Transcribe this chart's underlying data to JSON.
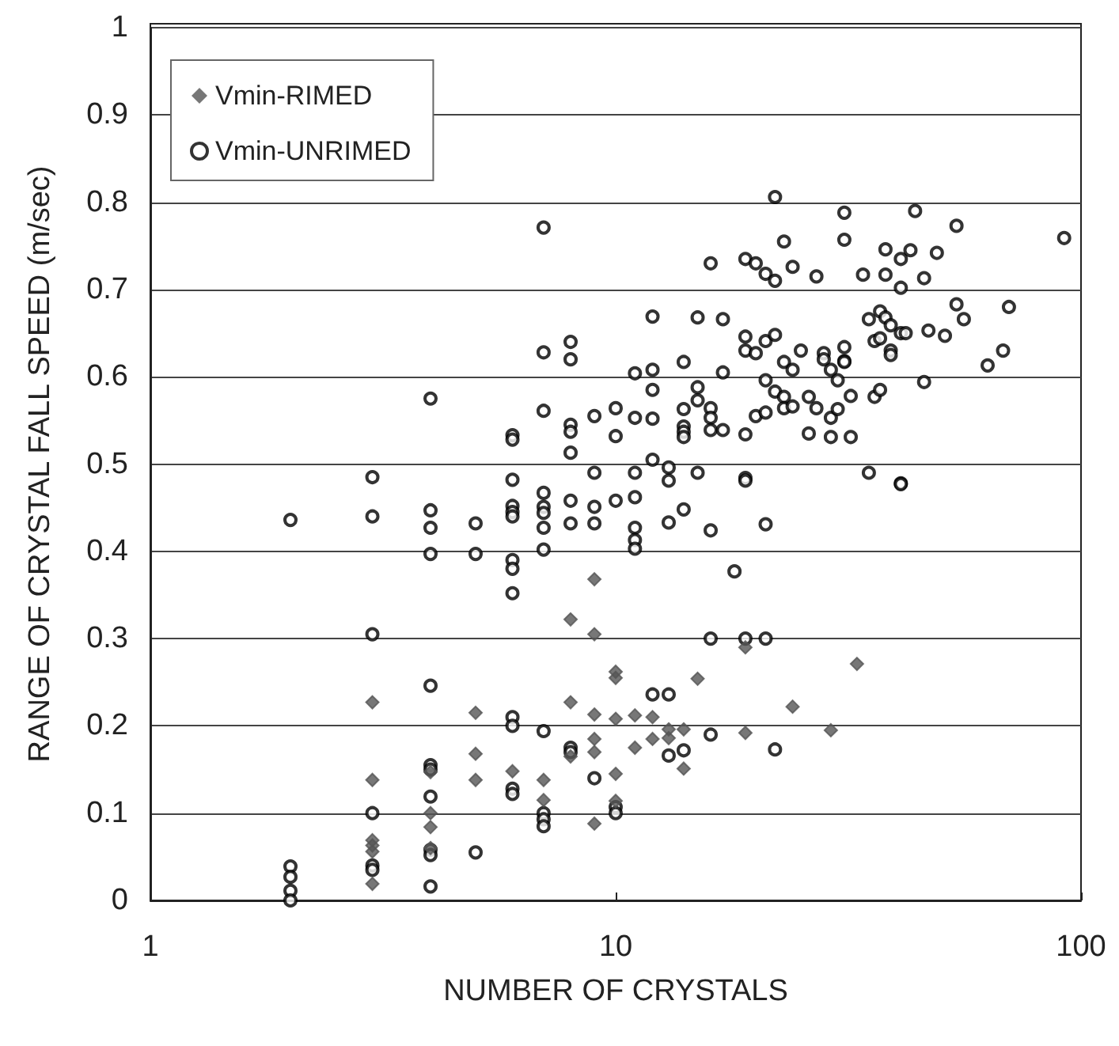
{
  "chart_data": {
    "type": "scatter",
    "xlabel": "NUMBER OF CRYSTALS",
    "ylabel": "RANGE OF CRYSTAL FALL SPEED (m/sec)",
    "log": "x",
    "xlim": [
      1,
      100
    ],
    "xticks": [
      1,
      10,
      100
    ],
    "ylim": [
      0,
      1
    ],
    "yticks": [
      0,
      0.1,
      0.2,
      0.3,
      0.4,
      0.5,
      0.6,
      0.7,
      0.8,
      0.9,
      1
    ],
    "grid": "y",
    "legend": "top left",
    "series": [
      {
        "name": "Vmin-RIMED",
        "color": "#555555",
        "marker": "diamond",
        "x": [
          3,
          3,
          3,
          3,
          3,
          3,
          4,
          4,
          4,
          4,
          5,
          5,
          5,
          6,
          7,
          7,
          8,
          8,
          8,
          9,
          9,
          9,
          9,
          9,
          9,
          10,
          10,
          10,
          10,
          10,
          11,
          11,
          12,
          12,
          13,
          13,
          14,
          14,
          15,
          19,
          19,
          24,
          29,
          33
        ],
        "values": [
          0.227,
          0.138,
          0.069,
          0.063,
          0.056,
          0.019,
          0.147,
          0.1,
          0.084,
          0.06,
          0.215,
          0.168,
          0.138,
          0.148,
          0.138,
          0.115,
          0.322,
          0.227,
          0.165,
          0.368,
          0.305,
          0.213,
          0.185,
          0.17,
          0.088,
          0.262,
          0.255,
          0.208,
          0.145,
          0.114,
          0.212,
          0.175,
          0.21,
          0.185,
          0.196,
          0.186,
          0.196,
          0.151,
          0.254,
          0.29,
          0.192,
          0.222,
          0.195,
          0.271
        ]
      },
      {
        "name": "Vmin-UNRIMED",
        "color": "#000000",
        "marker": "circle",
        "x": [
          2,
          2,
          2,
          2,
          2,
          3,
          3,
          3,
          3,
          3,
          3,
          4,
          4,
          4,
          4,
          4,
          4,
          4,
          4,
          4,
          4,
          4,
          5,
          5,
          5,
          6,
          6,
          6,
          6,
          6,
          6,
          6,
          6,
          6,
          6,
          6,
          6,
          6,
          7,
          7,
          7,
          7,
          7,
          7,
          7,
          7,
          7,
          7,
          7,
          7,
          8,
          8,
          8,
          8,
          8,
          8,
          8,
          8,
          8,
          9,
          9,
          9,
          9,
          9,
          10,
          10,
          10,
          10,
          10,
          11,
          11,
          11,
          11,
          11,
          11,
          11,
          12,
          12,
          12,
          12,
          12,
          12,
          13,
          13,
          13,
          13,
          13,
          14,
          14,
          14,
          14,
          14,
          14,
          14,
          15,
          15,
          15,
          15,
          16,
          16,
          16,
          16,
          16,
          16,
          16,
          17,
          17,
          17,
          18,
          19,
          19,
          19,
          19,
          19,
          19,
          19,
          20,
          20,
          20,
          21,
          21,
          21,
          21,
          21,
          21,
          22,
          22,
          22,
          22,
          22,
          23,
          23,
          23,
          23,
          24,
          24,
          24,
          25,
          26,
          26,
          27,
          27,
          28,
          28,
          29,
          29,
          29,
          30,
          30,
          31,
          31,
          31,
          31,
          31,
          32,
          32,
          34,
          35,
          35,
          36,
          36,
          37,
          37,
          37,
          38,
          38,
          38,
          39,
          39,
          39,
          41,
          41,
          41,
          41,
          41,
          42,
          43,
          44,
          46,
          46,
          47,
          49,
          51,
          54,
          54,
          56,
          63,
          68,
          70,
          92
        ],
        "values": [
          0.436,
          0.039,
          0.027,
          0.011,
          0.0,
          0.485,
          0.44,
          0.305,
          0.1,
          0.04,
          0.035,
          0.575,
          0.447,
          0.427,
          0.397,
          0.246,
          0.155,
          0.15,
          0.119,
          0.058,
          0.052,
          0.016,
          0.432,
          0.397,
          0.055,
          0.533,
          0.528,
          0.482,
          0.452,
          0.445,
          0.44,
          0.39,
          0.38,
          0.352,
          0.21,
          0.2,
          0.128,
          0.122,
          0.771,
          0.628,
          0.561,
          0.467,
          0.451,
          0.444,
          0.427,
          0.402,
          0.194,
          0.1,
          0.093,
          0.085,
          0.64,
          0.62,
          0.545,
          0.537,
          0.513,
          0.458,
          0.432,
          0.175,
          0.17,
          0.555,
          0.49,
          0.451,
          0.432,
          0.14,
          0.564,
          0.532,
          0.458,
          0.107,
          0.1,
          0.604,
          0.553,
          0.49,
          0.462,
          0.427,
          0.413,
          0.403,
          0.669,
          0.608,
          0.585,
          0.552,
          0.505,
          0.236,
          0.496,
          0.481,
          0.433,
          0.236,
          0.166,
          0.617,
          0.563,
          0.543,
          0.537,
          0.531,
          0.448,
          0.172,
          0.668,
          0.588,
          0.573,
          0.49,
          0.73,
          0.564,
          0.553,
          0.539,
          0.424,
          0.3,
          0.19,
          0.666,
          0.605,
          0.539,
          0.377,
          0.735,
          0.646,
          0.63,
          0.534,
          0.484,
          0.481,
          0.3,
          0.73,
          0.627,
          0.555,
          0.718,
          0.641,
          0.596,
          0.559,
          0.431,
          0.3,
          0.806,
          0.71,
          0.648,
          0.583,
          0.173,
          0.755,
          0.617,
          0.577,
          0.564,
          0.726,
          0.608,
          0.566,
          0.63,
          0.577,
          0.535,
          0.715,
          0.564,
          0.627,
          0.62,
          0.608,
          0.553,
          0.531,
          0.596,
          0.563,
          0.788,
          0.757,
          0.634,
          0.618,
          0.617,
          0.578,
          0.531,
          0.717,
          0.666,
          0.49,
          0.641,
          0.577,
          0.675,
          0.644,
          0.585,
          0.746,
          0.717,
          0.668,
          0.659,
          0.63,
          0.625,
          0.735,
          0.702,
          0.65,
          0.478,
          0.477,
          0.65,
          0.745,
          0.79,
          0.713,
          0.594,
          0.653,
          0.742,
          0.647,
          0.773,
          0.683,
          0.666,
          0.613,
          0.63,
          0.68,
          0.759
        ]
      }
    ]
  }
}
